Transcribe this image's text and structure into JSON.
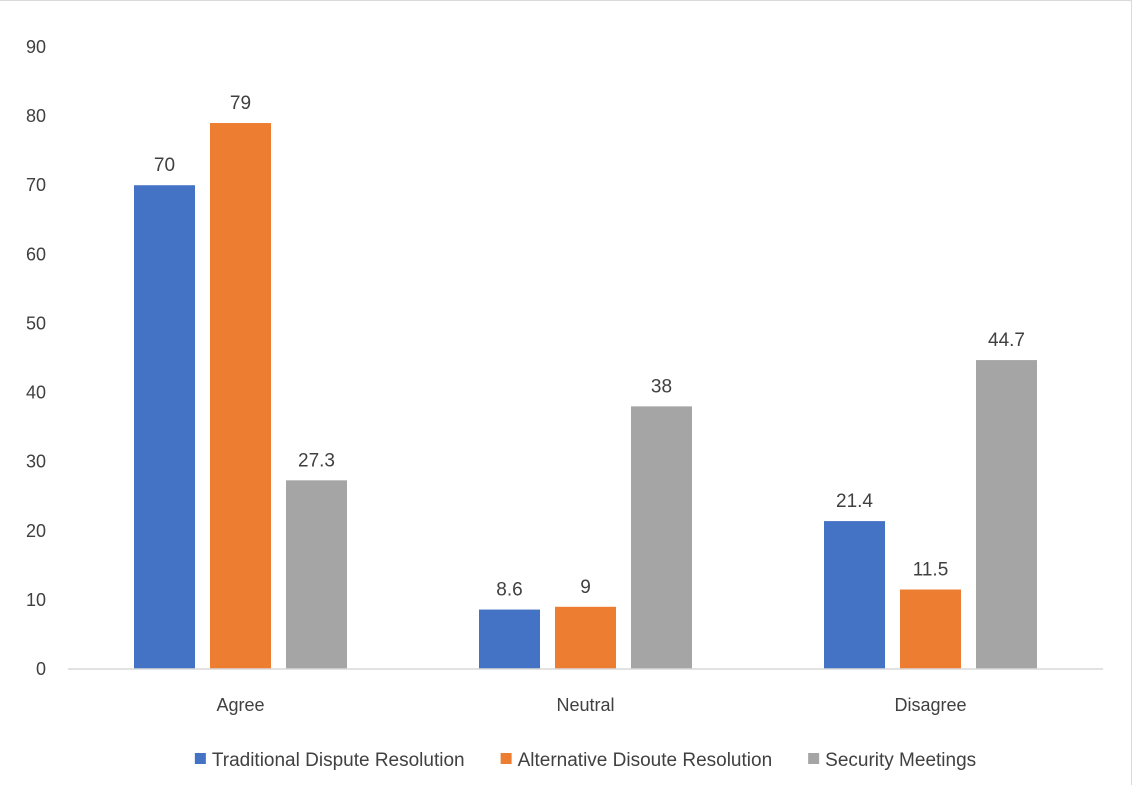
{
  "chart_data": {
    "type": "bar",
    "title": "",
    "xlabel": "",
    "ylabel": "",
    "categories": [
      "Agree",
      "Neutral",
      "Disagree"
    ],
    "series": [
      {
        "name": "Traditional Dispute Resolution",
        "color": "#4472C4",
        "values": [
          70,
          8.6,
          21.4
        ],
        "labels": [
          "70",
          "8.6",
          "21.4"
        ]
      },
      {
        "name": "Alternative Disoute Resolution",
        "color": "#ED7D31",
        "values": [
          79,
          9,
          11.5
        ],
        "labels": [
          "79",
          "9",
          "11.5"
        ]
      },
      {
        "name": "Security Meetings",
        "color": "#A5A5A5",
        "values": [
          27.3,
          38,
          44.7
        ],
        "labels": [
          "27.3",
          "38",
          "44.7"
        ]
      }
    ],
    "ylim": [
      0,
      90
    ],
    "yticks": [
      0,
      10,
      20,
      30,
      40,
      50,
      60,
      70,
      80,
      90
    ],
    "grid": false,
    "legend_position": "bottom",
    "show_data_labels": true
  }
}
